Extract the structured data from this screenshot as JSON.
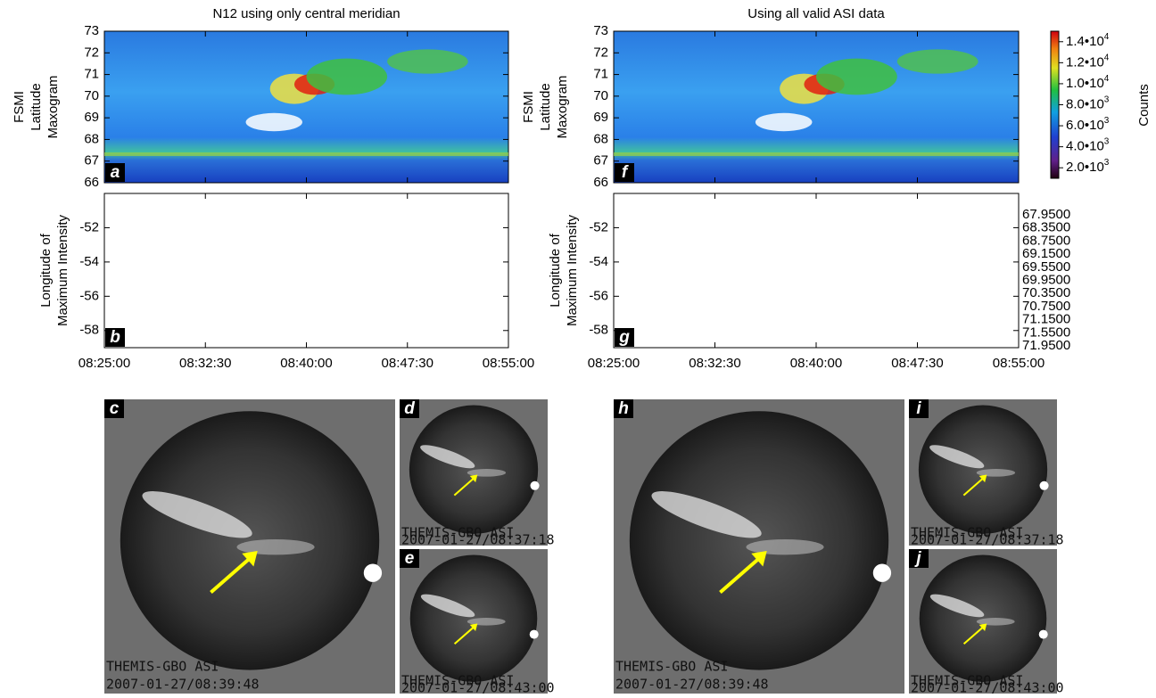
{
  "panels": [
    {
      "title": "N12 using only central meridian",
      "maxogram": {
        "letter": "a",
        "ylabel": [
          "FSMI",
          "Latitude",
          "Maxogram"
        ],
        "ylim": [
          66,
          73
        ],
        "yticks": [
          66,
          67,
          68,
          69,
          70,
          71,
          72,
          73
        ]
      },
      "longitude": {
        "letter": "b",
        "ylabel": [
          "Longitude of",
          "Maximum Intensity"
        ],
        "ylim": [
          -59,
          -50
        ],
        "yticks": [
          -58,
          -56,
          -54,
          -52
        ]
      },
      "xticks": [
        "08:25:00",
        "08:32:30",
        "08:40:00",
        "08:47:30",
        "08:55:00"
      ],
      "images": [
        {
          "letter": "c",
          "caption": [
            "THEMIS-GBO ASI",
            "2007-01-27/08:39:48"
          ]
        },
        {
          "letter": "d",
          "caption": [
            "THEMIS-GBO ASI",
            "2007-01-27/08:37:18"
          ]
        },
        {
          "letter": "e",
          "caption": [
            "THEMIS-GBO ASI",
            "2007-01-27/08:43:00"
          ]
        }
      ]
    },
    {
      "title": "Using all valid ASI data",
      "maxogram": {
        "letter": "f",
        "ylabel": [
          "FSMI",
          "Latitude",
          "Maxogram"
        ],
        "ylim": [
          66,
          73
        ],
        "yticks": [
          66,
          67,
          68,
          69,
          70,
          71,
          72,
          73
        ]
      },
      "longitude": {
        "letter": "g",
        "ylabel": [
          "Longitude of",
          "Maximum Intensity"
        ],
        "ylim": [
          -59,
          -50
        ],
        "yticks": [
          -58,
          -56,
          -54,
          -52
        ]
      },
      "xticks": [
        "08:25:00",
        "08:32:30",
        "08:40:00",
        "08:47:30",
        "08:55:00"
      ],
      "images": [
        {
          "letter": "h",
          "caption": [
            "THEMIS-GBO ASI",
            "2007-01-27/08:39:48"
          ]
        },
        {
          "letter": "i",
          "caption": [
            "THEMIS-GBO ASI",
            "2007-01-27/08:37:18"
          ]
        },
        {
          "letter": "j",
          "caption": [
            "THEMIS-GBO ASI",
            "2007-01-27/08:43:00"
          ]
        }
      ]
    }
  ],
  "colorbar": {
    "label": "Counts",
    "clim": [
      1000,
      15000
    ],
    "ticks": [
      {
        "value": 14000,
        "label": "1.4•10",
        "exp": "4"
      },
      {
        "value": 12000,
        "label": "1.2•10",
        "exp": "4"
      },
      {
        "value": 10000,
        "label": "1.0•10",
        "exp": "4"
      },
      {
        "value": 8000,
        "label": "8.0•10",
        "exp": "3"
      },
      {
        "value": 6000,
        "label": "6.0•10",
        "exp": "3"
      },
      {
        "value": 4000,
        "label": "4.0•10",
        "exp": "3"
      },
      {
        "value": 2000,
        "label": "2.0•10",
        "exp": "3"
      }
    ]
  },
  "legend": [
    {
      "name": "67.9500",
      "color": "#1a9a7a"
    },
    {
      "name": "68.3500",
      "color": "#2a8f8a"
    },
    {
      "name": "68.7500",
      "color": "#2a7fa0"
    },
    {
      "name": "69.1500",
      "color": "#2a6fb8"
    },
    {
      "name": "69.5500",
      "color": "#3a60c8"
    },
    {
      "name": "69.9500",
      "color": "#7050c8"
    },
    {
      "name": "70.3500",
      "color": "#a040c8"
    },
    {
      "name": "70.7500",
      "color": "#d030c0"
    },
    {
      "name": "71.1500",
      "color": "#e838b0"
    },
    {
      "name": "71.5500",
      "color": "#f060c0"
    },
    {
      "name": "71.9500",
      "color": "#f080d0"
    }
  ]
}
